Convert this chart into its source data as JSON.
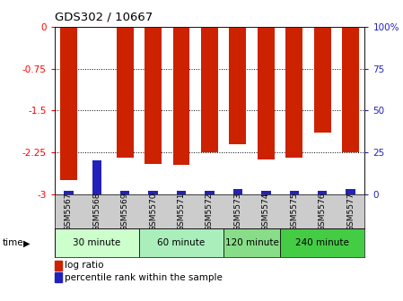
{
  "title": "GDS302 / 10667",
  "categories": [
    "GSM5567",
    "GSM5568",
    "GSM5569",
    "GSM5570",
    "GSM5571",
    "GSM5572",
    "GSM5573",
    "GSM5574",
    "GSM5575",
    "GSM5576",
    "GSM5577"
  ],
  "log_ratios": [
    -2.75,
    -0.02,
    -2.35,
    -2.45,
    -2.48,
    -2.25,
    -2.1,
    -2.38,
    -2.35,
    -1.9,
    -2.25
  ],
  "percentile_ranks": [
    2,
    20,
    2,
    2,
    2,
    2,
    3,
    2,
    2,
    2,
    3
  ],
  "bar_color": "#cc2200",
  "marker_color": "#2222bb",
  "ylim": [
    -3.0,
    0.0
  ],
  "y_ticks": [
    0.0,
    -0.75,
    -1.5,
    -2.25,
    -3.0
  ],
  "y_tick_labels": [
    "0",
    "-0.75",
    "-1.5",
    "-2.25",
    "-3"
  ],
  "right_ylim": [
    0,
    100
  ],
  "right_y_ticks": [
    0,
    25,
    50,
    75,
    100
  ],
  "right_y_tick_labels": [
    "0",
    "25",
    "50",
    "75",
    "100%"
  ],
  "time_groups": [
    {
      "label": "30 minute",
      "start": 0,
      "end": 2,
      "color": "#ccffcc"
    },
    {
      "label": "60 minute",
      "start": 3,
      "end": 5,
      "color": "#aaeebb"
    },
    {
      "label": "120 minute",
      "start": 6,
      "end": 7,
      "color": "#88dd88"
    },
    {
      "label": "240 minute",
      "start": 8,
      "end": 10,
      "color": "#44cc44"
    }
  ],
  "time_label": "time",
  "legend_bar_label": "log ratio",
  "legend_marker_label": "percentile rank within the sample",
  "bg_color": "#ffffff",
  "plot_bg_color": "#ffffff",
  "right_axis_color": "#2222bb",
  "gridline_ticks": [
    -0.75,
    -1.5,
    -2.25
  ]
}
